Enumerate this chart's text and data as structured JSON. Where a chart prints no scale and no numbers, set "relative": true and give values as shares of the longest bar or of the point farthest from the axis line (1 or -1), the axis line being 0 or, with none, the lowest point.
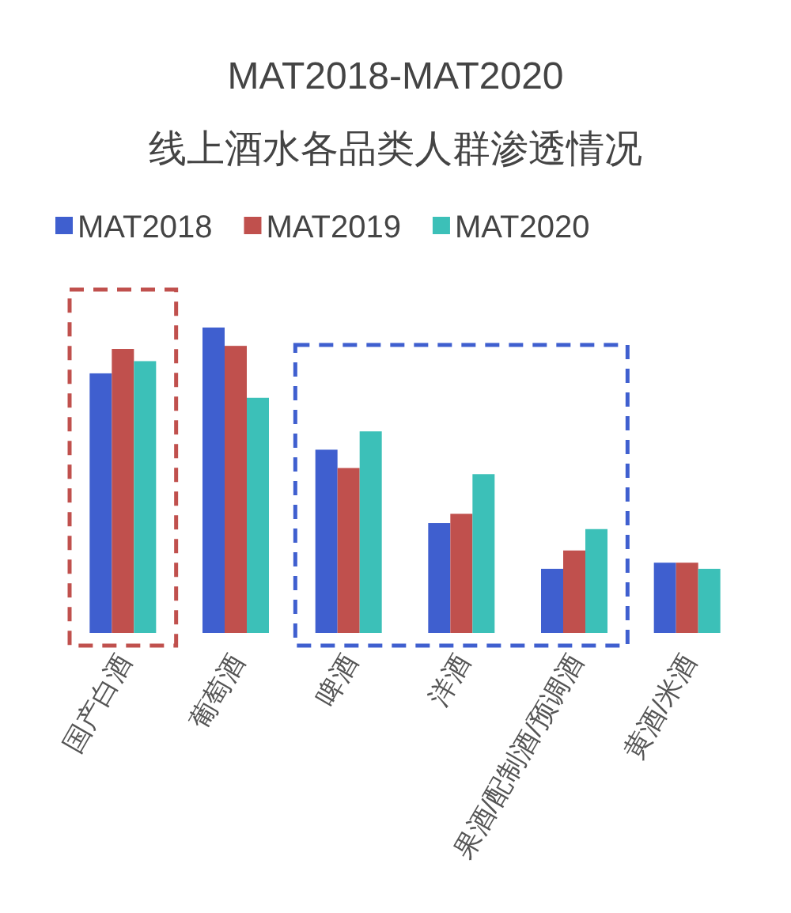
{
  "chart_data": {
    "type": "bar",
    "title": "MAT2018-MAT2020",
    "subtitle": "线上酒水各品类人群渗透情况",
    "categories": [
      "国产白酒",
      "葡萄酒",
      "啤酒",
      "洋酒",
      "果酒/配制酒/预调酒",
      "黄酒/米酒"
    ],
    "relative": true,
    "legend": "top",
    "series": [
      {
        "name": "MAT2018",
        "color": "#3f5fcf",
        "values": [
          0.85,
          1,
          0.6,
          0.36,
          0.21,
          0.23
        ]
      },
      {
        "name": "MAT2019",
        "color": "#c0504d",
        "values": [
          0.93,
          0.94,
          0.54,
          0.39,
          0.27,
          0.23
        ]
      },
      {
        "name": "MAT2020",
        "color": "#3cc0b8",
        "values": [
          0.89,
          0.77,
          0.66,
          0.52,
          0.34,
          0.21
        ]
      }
    ]
  }
}
